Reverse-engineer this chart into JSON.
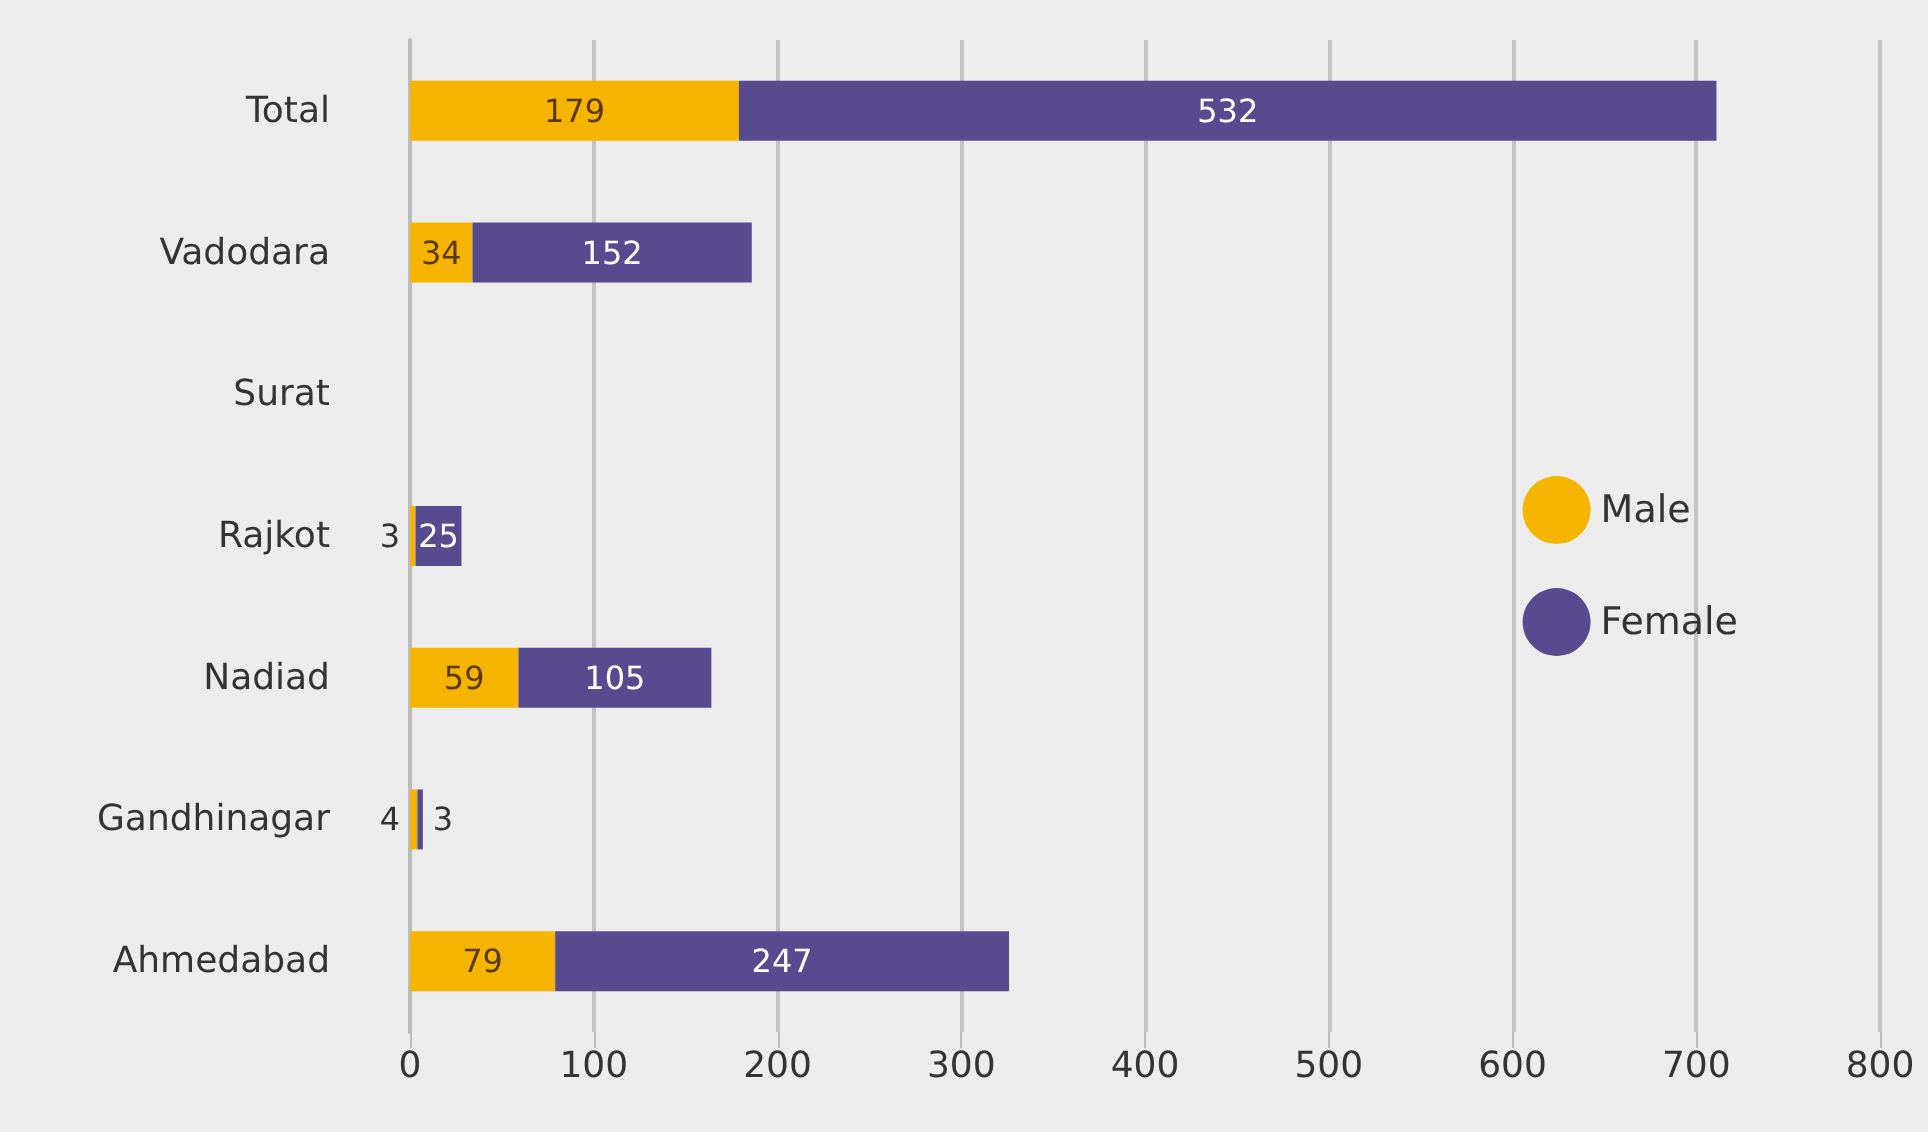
{
  "chart_data": {
    "type": "bar",
    "orientation": "horizontal",
    "stacked": true,
    "categories": [
      "Total",
      "Vadodara",
      "Surat",
      "Rajkot",
      "Nadiad",
      "Gandhinagar",
      "Ahmedabad"
    ],
    "series": [
      {
        "name": "Male",
        "color": "#f5b400",
        "values": [
          179,
          34,
          null,
          3,
          59,
          4,
          79
        ]
      },
      {
        "name": "Female",
        "color": "#574a8f",
        "values": [
          532,
          152,
          null,
          25,
          105,
          3,
          247
        ]
      }
    ],
    "xlim": [
      0,
      800
    ],
    "xticks": [
      0,
      100,
      200,
      300,
      400,
      500,
      600,
      700,
      800
    ],
    "grid": "x",
    "legend": "right",
    "data_labels": true
  }
}
